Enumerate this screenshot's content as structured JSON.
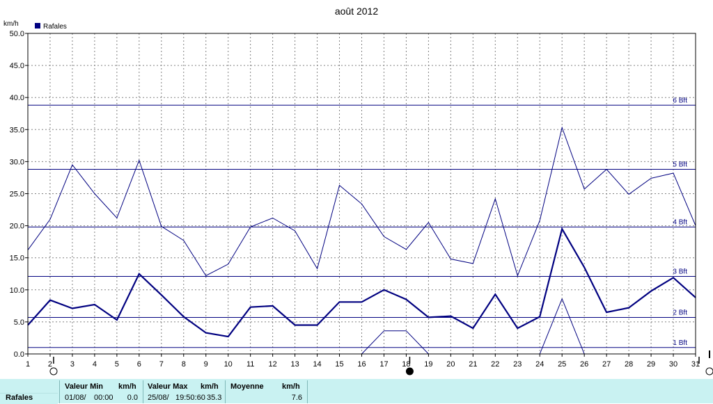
{
  "chart_data": {
    "type": "line",
    "title": "août 2012",
    "ylabel": "km/h",
    "ylim": [
      0,
      50
    ],
    "yticks": [
      "0.0",
      "5.0",
      "10.0",
      "15.0",
      "20.0",
      "25.0",
      "30.0",
      "35.0",
      "40.0",
      "45.0",
      "50.0"
    ],
    "x": [
      1,
      2,
      3,
      4,
      5,
      6,
      7,
      8,
      9,
      10,
      11,
      12,
      13,
      14,
      15,
      16,
      17,
      18,
      19,
      20,
      21,
      22,
      23,
      24,
      25,
      26,
      27,
      28,
      29,
      30,
      31
    ],
    "legend": "top-left",
    "grid": true,
    "series": [
      {
        "name": "Rafales",
        "style": "mean",
        "values": [
          4.5,
          8.4,
          7.1,
          7.7,
          5.3,
          12.5,
          9.2,
          5.8,
          3.3,
          2.7,
          7.3,
          7.5,
          4.5,
          4.5,
          8.1,
          8.1,
          10.0,
          8.5,
          5.7,
          5.9,
          4.0,
          9.3,
          4.0,
          5.8,
          19.5,
          13.5,
          6.5,
          7.2,
          9.8,
          11.9,
          8.8
        ]
      },
      {
        "style": "max",
        "values": [
          16.2,
          21.0,
          29.5,
          25.0,
          21.2,
          30.2,
          19.9,
          17.7,
          12.2,
          14.0,
          19.8,
          21.2,
          19.2,
          13.3,
          26.3,
          23.4,
          18.3,
          16.3,
          20.5,
          14.8,
          14.1,
          24.2,
          12.2,
          20.8,
          35.3,
          25.7,
          28.8,
          24.9,
          27.4,
          28.2,
          20.0
        ]
      },
      {
        "style": "min",
        "values": [
          0,
          0,
          0,
          0,
          0,
          0,
          0,
          0,
          0,
          0,
          0,
          0,
          0,
          0,
          0,
          0,
          3.6,
          3.6,
          0,
          0,
          0,
          0,
          0,
          0,
          8.6,
          0,
          0,
          0,
          0,
          0,
          0
        ]
      }
    ],
    "reference_lines": [
      {
        "label": "1 Bft",
        "value": 1.0
      },
      {
        "label": "2 Bft",
        "value": 5.7
      },
      {
        "label": "3 Bft",
        "value": 12.1
      },
      {
        "label": "4 Bft",
        "value": 19.8
      },
      {
        "label": "5 Bft",
        "value": 28.8
      },
      {
        "label": "6 Bft",
        "value": 38.8
      }
    ],
    "moon_phases": [
      {
        "day": 2,
        "phase": "full"
      },
      {
        "day": 18,
        "phase": "new"
      },
      {
        "day": 31,
        "phase": "full"
      }
    ]
  },
  "stats": {
    "row_label": "Rafales",
    "min_header": "Valeur Min",
    "min_unit": "km/h",
    "min_date": "01/08/",
    "min_time": "00:00",
    "min_value": "0.0",
    "max_header": "Valeur Max",
    "max_unit": "km/h",
    "max_date": "25/08/",
    "max_time": "19:50:60",
    "max_value": "35.3",
    "avg_header": "Moyenne",
    "avg_unit": "km/h",
    "avg_value": "7.6"
  },
  "colors": {
    "series": "#000080",
    "grid": "#808080",
    "reference": "#000080",
    "stats_background": "#c9f2f2"
  }
}
